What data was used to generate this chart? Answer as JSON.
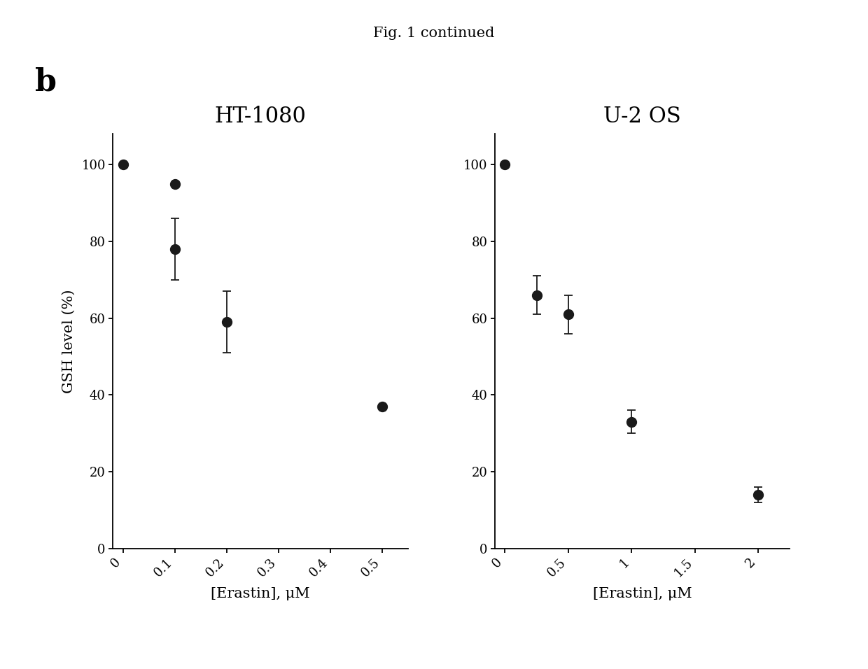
{
  "title": "Fig. 1 continued",
  "panel_label": "b",
  "left_panel": {
    "title": "HT-1080",
    "xlabel": "[Erastin], μM",
    "ylabel": "GSH level (%)",
    "x_data": [
      0,
      0.1,
      0.1,
      0.2,
      0.5
    ],
    "y_data": [
      100,
      95,
      78,
      59,
      37
    ],
    "yerr": [
      0,
      0,
      8,
      8,
      0
    ],
    "x_fit": [
      0,
      0.1,
      0.2,
      0.3,
      0.4,
      0.5
    ],
    "xlim": [
      -0.02,
      0.55
    ],
    "ylim": [
      0,
      108
    ],
    "xticks": [
      0,
      0.1,
      0.2,
      0.3,
      0.4,
      0.5
    ],
    "yticks": [
      0,
      20,
      40,
      60,
      80,
      100
    ]
  },
  "right_panel": {
    "title": "U-2 OS",
    "xlabel": "[Erastin], μM",
    "x_data": [
      0,
      0.25,
      0.5,
      1.0,
      2.0
    ],
    "y_data": [
      100,
      66,
      61,
      33,
      14
    ],
    "yerr": [
      0,
      5,
      5,
      3,
      2
    ],
    "xlim": [
      -0.08,
      2.25
    ],
    "ylim": [
      0,
      108
    ],
    "xticks": [
      0,
      0.5,
      1.0,
      1.5,
      2.0
    ],
    "yticks": [
      0,
      20,
      40,
      60,
      80,
      100
    ]
  },
  "bg_color": "#ffffff",
  "line_color": "#1a1a1a",
  "marker_color": "#1a1a1a",
  "marker_size": 10,
  "line_width": 1.3,
  "title_fontsize": 15,
  "panel_label_fontsize": 32,
  "axis_label_fontsize": 15,
  "tick_fontsize": 13,
  "subplot_title_fontsize": 22
}
